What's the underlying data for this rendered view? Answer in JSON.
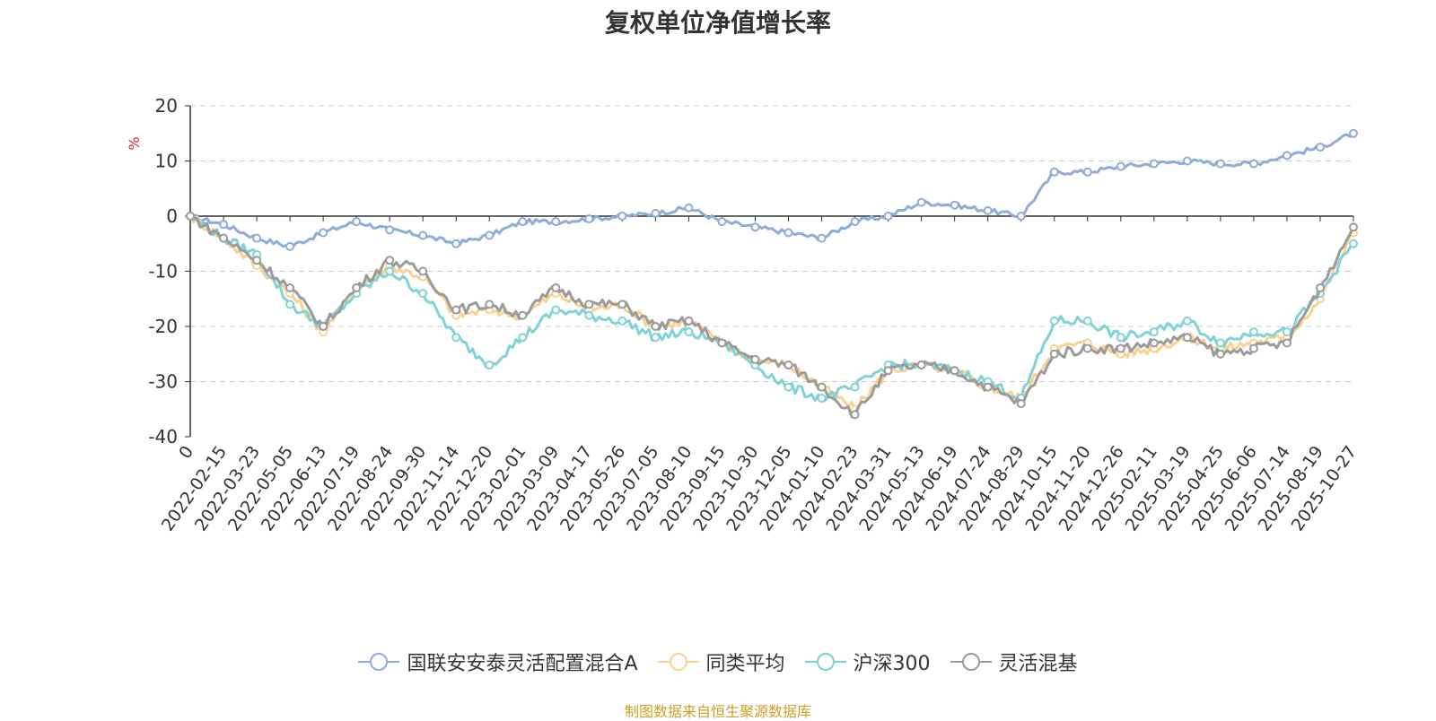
{
  "chart_data": {
    "type": "line",
    "title": "复权单位净值增长率",
    "ylabel": "%",
    "xlabel": "",
    "ylim": [
      -40,
      20
    ],
    "yticks": [
      20,
      10,
      0,
      -10,
      -20,
      -30,
      -40
    ],
    "categories": [
      "0",
      "2022-02-15",
      "2022-03-23",
      "2022-05-05",
      "2022-06-13",
      "2022-07-19",
      "2022-08-24",
      "2022-09-30",
      "2022-11-14",
      "2022-12-20",
      "2023-02-01",
      "2023-03-09",
      "2023-04-17",
      "2023-05-26",
      "2023-07-05",
      "2023-08-10",
      "2023-09-15",
      "2023-10-30",
      "2023-12-05",
      "2024-01-10",
      "2024-02-23",
      "2024-03-31",
      "2024-05-13",
      "2024-06-19",
      "2024-07-24",
      "2024-08-29",
      "2024-10-15",
      "2024-11-20",
      "2024-12-26",
      "2025-02-11",
      "2025-03-19",
      "2025-04-25",
      "2025-06-06",
      "2025-07-14",
      "2025-08-19",
      "2025-10-27"
    ],
    "series": [
      {
        "name": "国联安安泰灵活配置混合A",
        "color": "#8fabd9",
        "values": [
          0,
          -1.5,
          -4,
          -5.5,
          -3,
          -1,
          -2.5,
          -3.5,
          -5,
          -3.5,
          -1,
          -1,
          -0.5,
          0,
          0.5,
          1.5,
          -1,
          -2,
          -3,
          -4,
          -1,
          0,
          2.5,
          2,
          1,
          0,
          8,
          8,
          9,
          9.5,
          10,
          9.5,
          9.5,
          11,
          12.5,
          15
        ]
      },
      {
        "name": "同类平均",
        "color": "#fbd18d",
        "values": [
          0,
          -4,
          -9,
          -14,
          -21,
          -13,
          -9,
          -11,
          -18,
          -17,
          -18,
          -14,
          -17,
          -16,
          -20,
          -19,
          -23,
          -26,
          -27,
          -31,
          -35,
          -28,
          -27,
          -28,
          -31,
          -33,
          -24,
          -23,
          -25,
          -24,
          -22,
          -24,
          -23,
          -22,
          -15,
          -3
        ]
      },
      {
        "name": "沪深300",
        "color": "#7fd3d6",
        "values": [
          0,
          -4,
          -7,
          -16,
          -20,
          -14,
          -10,
          -14,
          -22,
          -27,
          -22,
          -17,
          -18,
          -19,
          -22,
          -21,
          -23,
          -27,
          -31,
          -33,
          -31,
          -27,
          -27,
          -28,
          -30,
          -33,
          -19,
          -19,
          -22,
          -21,
          -19,
          -23,
          -21,
          -21,
          -14,
          -5
        ]
      },
      {
        "name": "灵活混基",
        "color": "#9b9b9b",
        "values": [
          0,
          -4,
          -8,
          -13,
          -20,
          -13,
          -8,
          -10,
          -17,
          -16,
          -18,
          -13,
          -16,
          -16,
          -20,
          -19,
          -23,
          -26,
          -27,
          -31,
          -36,
          -28,
          -27,
          -28,
          -31,
          -34,
          -25,
          -24,
          -24,
          -23,
          -22,
          -25,
          -24,
          -23,
          -13,
          -2
        ]
      }
    ],
    "legend_position": "bottom-center",
    "grid": true
  },
  "source": "制图数据来自恒生聚源数据库"
}
